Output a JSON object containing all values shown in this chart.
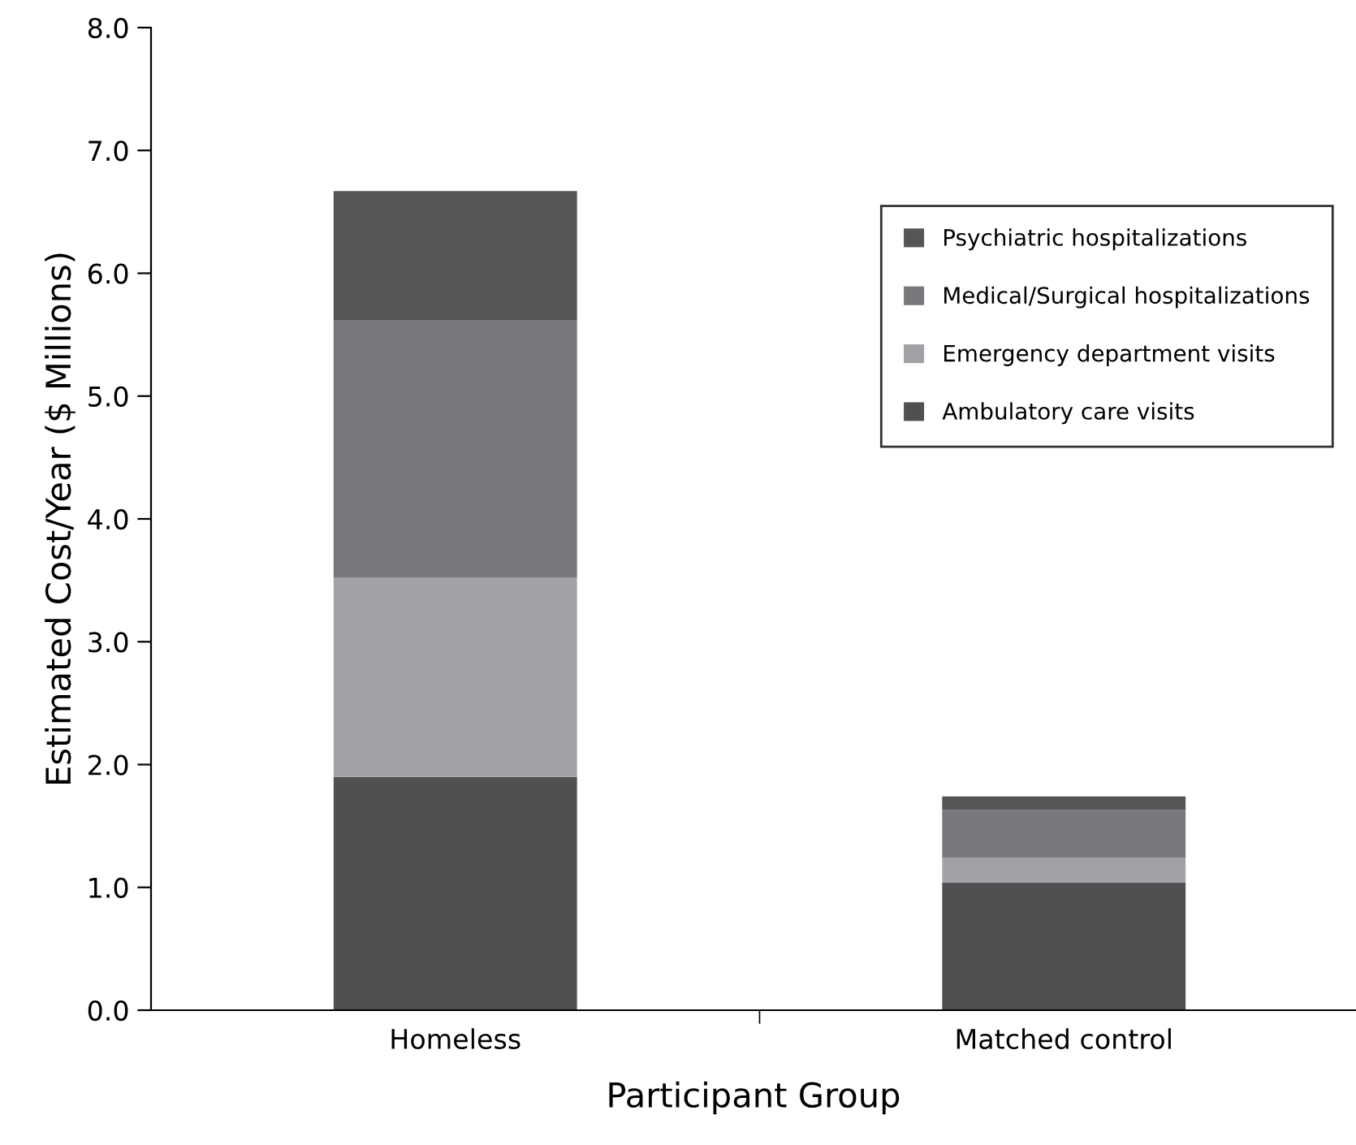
{
  "chart_data": {
    "type": "bar",
    "stacked": true,
    "xlabel": "Participant Group",
    "ylabel": "Estimated Cost/Year ($ Millions)",
    "categories": [
      "Homeless",
      "Matched control"
    ],
    "series": [
      {
        "name": "Ambulatory care visits",
        "color": "#505052",
        "values": [
          1.9,
          1.04
        ]
      },
      {
        "name": "Emergency department visits",
        "color": "#a0a2a5",
        "values": [
          1.62,
          0.2
        ]
      },
      {
        "name": "Medical/Surgical hospitalizations",
        "color": "#77787b",
        "values": [
          2.1,
          0.39
        ]
      },
      {
        "name": "Psychiatric hospitalizations",
        "color": "#555558",
        "values": [
          1.05,
          0.11
        ]
      }
    ],
    "ylim": [
      0,
      8
    ],
    "yticks": [
      {
        "value": 0,
        "label": "0.0"
      },
      {
        "value": 1,
        "label": "1.0"
      },
      {
        "value": 2,
        "label": "2.0"
      },
      {
        "value": 3,
        "label": "3.0"
      },
      {
        "value": 4,
        "label": "4.0"
      },
      {
        "value": 5,
        "label": "5.0"
      },
      {
        "value": 6,
        "label": "6.0"
      },
      {
        "value": 7,
        "label": "7.0"
      },
      {
        "value": 8,
        "label": "8.0"
      }
    ],
    "grid": false,
    "legend": "top right"
  }
}
